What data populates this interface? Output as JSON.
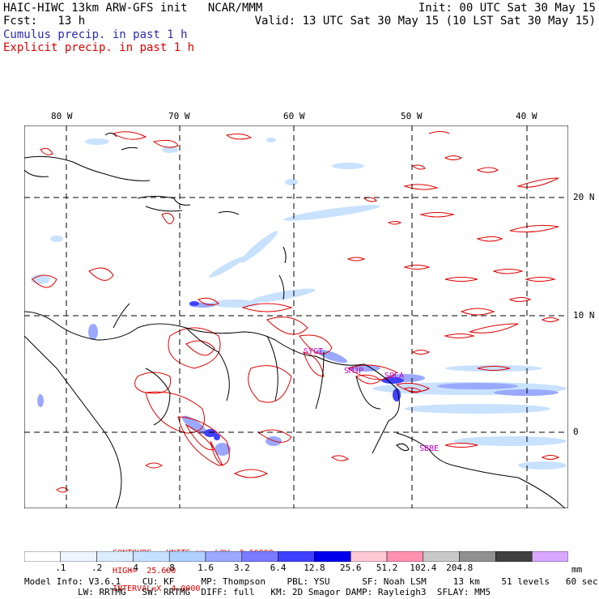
{
  "header": {
    "left_line1": "HAIC-HIWC 13km ARW-GFS init   NCAR/MMM",
    "left_line2": "Fcst:   13 h",
    "right_line1": "Init: 00 UTC Sat 30 May 15",
    "right_line2": "Valid: 13 UTC Sat 30 May 15 (10 LST Sat 30 May 15)",
    "legend_cumulus": "Cumulus precip. in past 1 h",
    "legend_explicit": "Explicit precip. in past 1 h"
  },
  "colors": {
    "cumulus": "#2a2ab0",
    "explicit": "#e00000",
    "contour_text": "#e00000",
    "label_magenta": "#c000c0"
  },
  "map": {
    "lon_labels": [
      "80 W",
      "70 W",
      "60 W",
      "50 W",
      "40 W"
    ],
    "lat_labels": [
      "20 N",
      "10 N",
      "0"
    ],
    "station_labels": [
      "SMJP",
      "SOCA",
      "SBBE",
      "SYGT"
    ]
  },
  "contours_line": {
    "prefix": "CONTOURS:  UNITS=mm  LOW= 0.10000",
    "high": "HIGH=  25.600",
    "interval": "INTERVAL=X  4.0000"
  },
  "colorbar": {
    "colors": [
      "#ffffff",
      "#eef5ff",
      "#dcecff",
      "#c6e0ff",
      "#b0d0ff",
      "#9aa8ff",
      "#7a7aff",
      "#4040ff",
      "#0000ee",
      "#ffc8d4",
      "#ff90b0",
      "#c8c8c8",
      "#909090",
      "#404040",
      "#d8a8ff"
    ],
    "tick_labels": [
      ".1",
      ".2",
      ".4",
      ".8",
      "1.6",
      "3.2",
      "6.4",
      "12.8",
      "25.6",
      "51.2",
      "102.4",
      "204.8"
    ],
    "units": "mm"
  },
  "model_info": {
    "line1": "Model Info: V3.6.1    CU: KF     MP: Thompson    PBL: YSU      SF: Noah LSM     13 km    51 levels   60 sec",
    "line2": "LW: RRTMG   SW: RRTMG  DIFF: full   KM: 2D Smagor DAMP: Rayleigh3  SFLAY: MM5"
  }
}
